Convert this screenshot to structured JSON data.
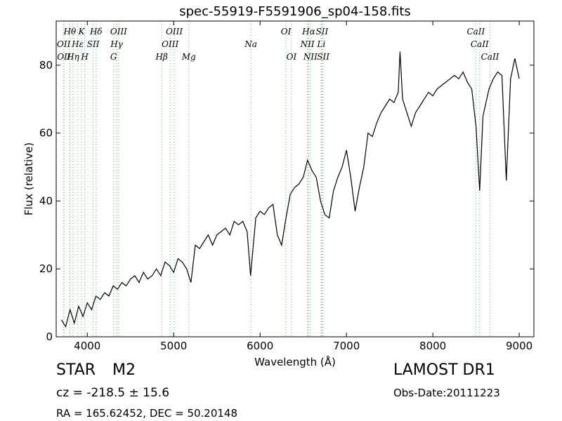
{
  "chart_data": {
    "type": "line",
    "title": "spec-55919-F5591906_sp04-158.fits",
    "xlabel": "Wavelength (Å)",
    "ylabel": "Flux (relative)",
    "xlim": [
      3640,
      9170
    ],
    "ylim": [
      0,
      93
    ],
    "xticks": [
      4000,
      5000,
      6000,
      7000,
      8000,
      9000
    ],
    "yticks": [
      0,
      20,
      40,
      60,
      80
    ],
    "x": [
      3700,
      3750,
      3800,
      3850,
      3900,
      3950,
      4000,
      4050,
      4100,
      4150,
      4200,
      4250,
      4300,
      4350,
      4400,
      4450,
      4500,
      4550,
      4600,
      4650,
      4700,
      4750,
      4800,
      4850,
      4900,
      4950,
      5000,
      5050,
      5100,
      5150,
      5200,
      5250,
      5300,
      5350,
      5400,
      5450,
      5500,
      5550,
      5600,
      5650,
      5700,
      5750,
      5800,
      5850,
      5890,
      5950,
      6000,
      6050,
      6100,
      6150,
      6200,
      6250,
      6300,
      6350,
      6400,
      6450,
      6500,
      6550,
      6600,
      6650,
      6700,
      6750,
      6800,
      6850,
      6900,
      6950,
      7000,
      7050,
      7100,
      7150,
      7200,
      7250,
      7300,
      7350,
      7400,
      7450,
      7500,
      7550,
      7600,
      7620,
      7650,
      7700,
      7750,
      7800,
      7850,
      7900,
      7950,
      8000,
      8050,
      8100,
      8150,
      8200,
      8250,
      8300,
      8350,
      8400,
      8450,
      8500,
      8542,
      8580,
      8650,
      8700,
      8750,
      8800,
      8850,
      8900,
      8950,
      9000
    ],
    "series": [
      {
        "color": "#000000",
        "values": [
          5,
          3,
          8,
          4,
          9,
          6,
          10,
          8,
          12,
          11,
          13,
          12,
          15,
          14,
          16,
          15,
          17,
          18,
          16,
          19,
          17,
          18,
          20,
          18,
          22,
          21,
          19,
          23,
          22,
          20,
          16,
          27,
          26,
          28,
          30,
          27,
          30,
          31,
          32,
          30,
          34,
          33,
          34,
          31,
          18,
          35,
          37,
          36,
          38,
          39,
          30,
          27,
          35,
          42,
          44,
          45,
          47,
          52,
          49,
          47,
          40,
          36,
          35,
          43,
          47,
          50,
          55,
          47,
          37,
          44,
          50,
          60,
          59,
          63,
          66,
          68,
          70,
          69,
          72,
          84,
          70,
          66,
          62,
          66,
          68,
          70,
          72,
          71,
          73,
          74,
          75,
          76,
          77,
          76,
          78,
          75,
          73,
          62,
          43,
          65,
          73,
          76,
          78,
          77,
          46,
          76,
          82,
          76
        ]
      }
    ],
    "line_color": "#5cb85c",
    "line_labels": [
      [
        {
          "name": "Hθ",
          "wavelength": 3798
        },
        {
          "name": "K",
          "wavelength": 3934
        },
        {
          "name": "Hδ",
          "wavelength": 4102
        },
        {
          "name": "OIII",
          "wavelength": 4363
        },
        {
          "name": "OIII",
          "wavelength": 5007
        },
        {
          "name": "OI",
          "wavelength": 6300
        },
        {
          "name": "Hα",
          "wavelength": 6563
        },
        {
          "name": "SII",
          "wavelength": 6717
        },
        {
          "name": "CaII",
          "wavelength": 8498
        }
      ],
      [
        {
          "name": "OII",
          "wavelength": 3727
        },
        {
          "name": "Hε",
          "wavelength": 3889
        },
        {
          "name": "SII",
          "wavelength": 4068
        },
        {
          "name": "Hγ",
          "wavelength": 4340
        },
        {
          "name": "OIII",
          "wavelength": 4959
        },
        {
          "name": "Na",
          "wavelength": 5893
        },
        {
          "name": "NII",
          "wavelength": 6548
        },
        {
          "name": "Li",
          "wavelength": 6708
        },
        {
          "name": "CaII",
          "wavelength": 8542
        }
      ],
      [
        {
          "name": "OII",
          "wavelength": 3729
        },
        {
          "name": "Hη",
          "wavelength": 3835
        },
        {
          "name": "H",
          "wavelength": 3970
        },
        {
          "name": "G",
          "wavelength": 4304
        },
        {
          "name": "Hβ",
          "wavelength": 4861
        },
        {
          "name": "Mg",
          "wavelength": 5175
        },
        {
          "name": "OI",
          "wavelength": 6364
        },
        {
          "name": "NII",
          "wavelength": 6583
        },
        {
          "name": "SII",
          "wavelength": 6731
        },
        {
          "name": "CaII",
          "wavelength": 8662
        }
      ]
    ],
    "object_class": "STAR",
    "subclass": "M2",
    "redshift": "cz = -218.5 ± 15.6",
    "coordinates": "RA = 165.62452, DEC = 50.20148",
    "survey": "LAMOST DR1",
    "obs_date": "Obs-Date:20111223"
  }
}
